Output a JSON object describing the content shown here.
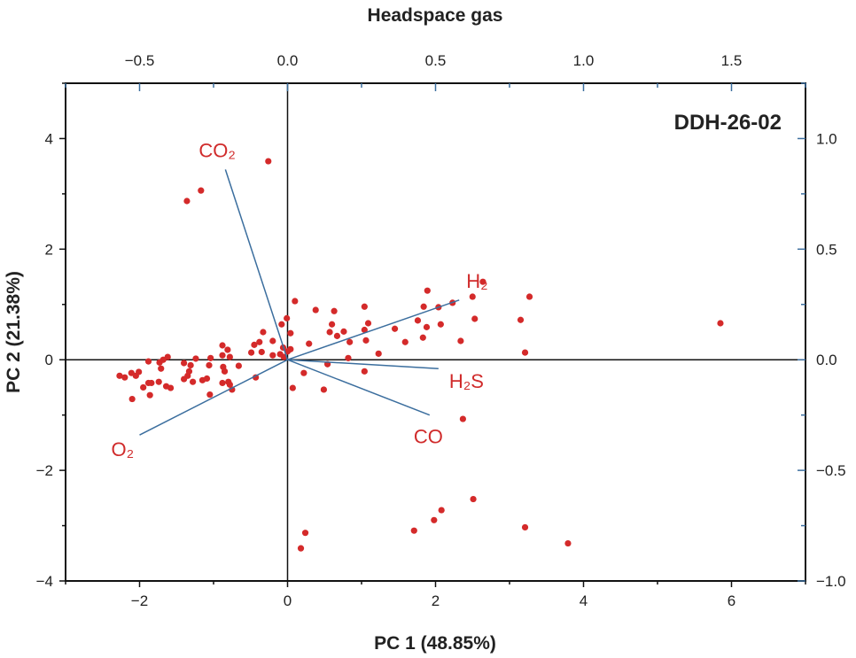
{
  "chart_data": {
    "type": "scatter",
    "title": "Headspace gas",
    "annotation": "DDH-26-02",
    "xlabel": "PC 1 (48.85%)",
    "ylabel": "PC 2 (21.38%)",
    "xlim": [
      -3,
      7
    ],
    "ylim": [
      -4,
      5
    ],
    "x_ticks": [
      "−2",
      "0",
      "2",
      "4",
      "6"
    ],
    "y_ticks": [
      "−4",
      "−2",
      "0",
      "2",
      "4"
    ],
    "top_axis": {
      "lim": [
        -0.75,
        1.75
      ],
      "ticks": [
        "−0.5",
        "0.0",
        "0.5",
        "1.0",
        "1.5"
      ]
    },
    "right_axis": {
      "lim": [
        -1.0,
        1.25
      ],
      "ticks": [
        "−1.0",
        "−0.5",
        "0.0",
        "0.5",
        "1.0"
      ]
    },
    "grid": false,
    "colors": {
      "points": "#d42a2a",
      "vectors": "#3b6e9e",
      "vector_labels": "#d02b2b",
      "axes": "#111111"
    },
    "scores": [
      [
        -0.33,
        0.5
      ],
      [
        0.04,
        0.48
      ],
      [
        -0.38,
        0.32
      ],
      [
        -0.2,
        0.34
      ],
      [
        -0.45,
        0.27
      ],
      [
        -0.88,
        0.26
      ],
      [
        -0.81,
        0.18
      ],
      [
        -0.06,
        0.22
      ],
      [
        0.04,
        0.19
      ],
      [
        -0.49,
        0.13
      ],
      [
        -0.35,
        0.14
      ],
      [
        -0.2,
        0.08
      ],
      [
        -0.88,
        0.08
      ],
      [
        -0.78,
        0.05
      ],
      [
        -1.62,
        0.05
      ],
      [
        -1.68,
        0.0
      ],
      [
        -1.73,
        -0.05
      ],
      [
        -1.88,
        -0.03
      ],
      [
        -1.71,
        -0.16
      ],
      [
        -1.04,
        0.03
      ],
      [
        -1.24,
        0.02
      ],
      [
        -1.4,
        -0.06
      ],
      [
        -1.31,
        -0.1
      ],
      [
        -1.06,
        -0.1
      ],
      [
        -0.66,
        -0.11
      ],
      [
        -0.87,
        -0.13
      ],
      [
        -0.85,
        -0.21
      ],
      [
        -1.33,
        -0.21
      ],
      [
        -1.35,
        -0.29
      ],
      [
        -1.4,
        -0.35
      ],
      [
        -1.28,
        -0.4
      ],
      [
        -1.15,
        -0.37
      ],
      [
        -1.09,
        -0.34
      ],
      [
        -0.43,
        -0.32
      ],
      [
        -2.27,
        -0.29
      ],
      [
        -2.2,
        -0.32
      ],
      [
        -2.11,
        -0.24
      ],
      [
        -2.05,
        -0.29
      ],
      [
        -2.01,
        -0.22
      ],
      [
        -1.95,
        -0.5
      ],
      [
        -1.88,
        -0.42
      ],
      [
        -1.84,
        -0.42
      ],
      [
        -1.74,
        -0.4
      ],
      [
        -1.64,
        -0.48
      ],
      [
        -1.58,
        -0.51
      ],
      [
        -0.88,
        -0.42
      ],
      [
        -0.8,
        -0.4
      ],
      [
        -0.78,
        -0.45
      ],
      [
        -0.75,
        -0.54
      ],
      [
        -1.05,
        -0.63
      ],
      [
        -2.1,
        -0.71
      ],
      [
        -1.86,
        -0.64
      ],
      [
        0.07,
        -0.51
      ],
      [
        0.1,
        1.06
      ],
      [
        2.64,
        1.41
      ],
      [
        1.89,
        1.25
      ],
      [
        2.5,
        1.14
      ],
      [
        3.27,
        1.14
      ],
      [
        2.23,
        1.03
      ],
      [
        2.04,
        0.95
      ],
      [
        1.84,
        0.96
      ],
      [
        0.38,
        0.9
      ],
      [
        0.63,
        0.88
      ],
      [
        1.04,
        0.96
      ],
      [
        -0.01,
        0.75
      ],
      [
        -0.08,
        0.64
      ],
      [
        0.6,
        0.64
      ],
      [
        1.09,
        0.66
      ],
      [
        1.76,
        0.71
      ],
      [
        2.07,
        0.64
      ],
      [
        1.88,
        0.59
      ],
      [
        2.53,
        0.74
      ],
      [
        3.15,
        0.72
      ],
      [
        1.45,
        0.56
      ],
      [
        1.04,
        0.54
      ],
      [
        0.57,
        0.5
      ],
      [
        0.67,
        0.43
      ],
      [
        0.76,
        0.51
      ],
      [
        1.83,
        0.4
      ],
      [
        2.34,
        0.34
      ],
      [
        1.59,
        0.32
      ],
      [
        1.06,
        0.35
      ],
      [
        0.84,
        0.32
      ],
      [
        0.29,
        0.29
      ],
      [
        1.23,
        0.11
      ],
      [
        0.82,
        0.03
      ],
      [
        3.21,
        0.13
      ],
      [
        0.54,
        -0.08
      ],
      [
        1.04,
        -0.21
      ],
      [
        0.22,
        -0.24
      ],
      [
        0.49,
        -0.54
      ],
      [
        -0.26,
        3.59
      ],
      [
        -1.17,
        3.06
      ],
      [
        -1.36,
        2.87
      ],
      [
        2.37,
        -1.07
      ],
      [
        5.85,
        0.66
      ],
      [
        2.51,
        -2.52
      ],
      [
        2.08,
        -2.72
      ],
      [
        1.98,
        -2.9
      ],
      [
        1.71,
        -3.09
      ],
      [
        3.21,
        -3.03
      ],
      [
        3.79,
        -3.32
      ],
      [
        0.24,
        -3.13
      ],
      [
        0.18,
        -3.41
      ],
      [
        -0.1,
        0.1
      ],
      [
        -0.05,
        0.05
      ],
      [
        0.0,
        0.15
      ]
    ],
    "loadings": [
      {
        "name": "CO₂",
        "x": -0.21,
        "y": 0.86
      },
      {
        "name": "H₂",
        "x": 0.58,
        "y": 0.27
      },
      {
        "name": "H₂S",
        "x": 0.51,
        "y": -0.04
      },
      {
        "name": "CO",
        "x": 0.48,
        "y": -0.25
      },
      {
        "name": "O₂",
        "x": -0.5,
        "y": -0.34
      }
    ]
  }
}
